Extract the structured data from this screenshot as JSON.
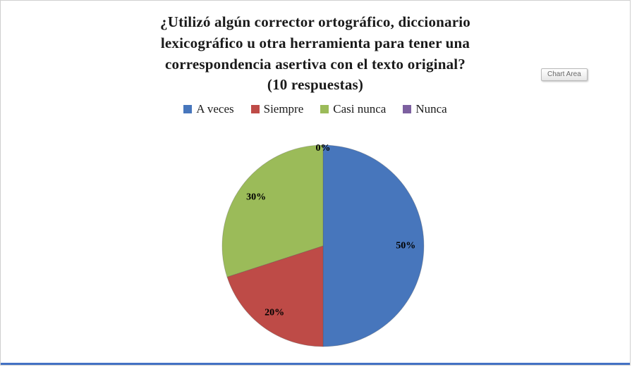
{
  "chart_data": {
    "type": "pie",
    "title": "¿Utilizó algún corrector ortográfico, diccionario lexicográfico u otra herramienta para tener una correspondencia asertiva con el texto original? (10 respuestas)",
    "title_lines": [
      "¿Utilizó algún corrector ortográfico, diccionario",
      "lexicográfico u otra herramienta para tener una",
      "correspondencia asertiva con el texto original?",
      "(10 respuestas)"
    ],
    "legend_position": "top",
    "legend_order": [
      "A veces",
      "Siempre",
      "Casi nunca",
      "Nunca"
    ],
    "total_responses": 10,
    "series": [
      {
        "label": "A veces",
        "value": 50,
        "data_label": "50%",
        "color": "#4776BC"
      },
      {
        "label": "Siempre",
        "value": 20,
        "data_label": "20%",
        "color": "#BE4B47"
      },
      {
        "label": "Casi nunca",
        "value": 30,
        "data_label": "30%",
        "color": "#9BBB59"
      },
      {
        "label": "Nunca",
        "value": 0,
        "data_label": "0%",
        "color": "#7D60A0"
      }
    ]
  },
  "tooltip": {
    "label": "Chart Area"
  },
  "frame": {
    "bottom_bar_color": "#4472C4"
  }
}
